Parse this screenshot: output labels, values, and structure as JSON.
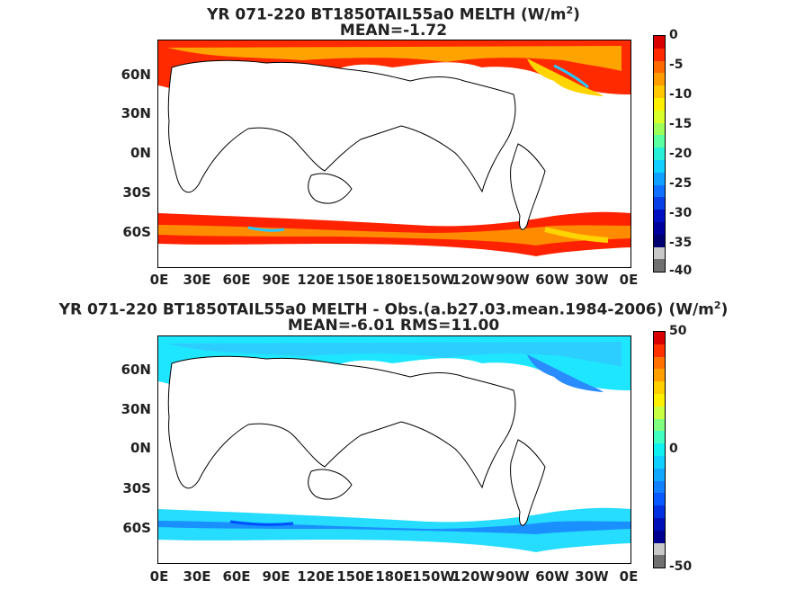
{
  "panels": [
    {
      "title_line1": "YR 071-220 BT1850TAIL55a0  MELTH (W/m",
      "title_sup": "2",
      "title_close": ")",
      "title_line2": "MEAN=-1.72",
      "colorbar_labels": [
        "0",
        "-5",
        "-10",
        "-15",
        "-20",
        "-25",
        "-30",
        "-35",
        "-40"
      ],
      "colors": {
        "arctic": "#ff2a00",
        "arctic_inner": "#ffb000",
        "shelf": "#ffd400",
        "ring": "#ff2200",
        "ring_inner": "#ff8c00",
        "accent": "#28c8ff"
      }
    },
    {
      "title_line1": "YR 071-220 BT1850TAIL55a0 MELTH - Obs.(a.b27.03.mean.1984-2006) (W/m",
      "title_sup": "2",
      "title_close": ")",
      "title_line2": "MEAN=-6.01 RMS=11.00",
      "colorbar_labels": [
        "50",
        "0",
        "-50"
      ],
      "colors": {
        "arctic": "#1ee6ff",
        "arctic_inner": "#30c8ff",
        "shelf": "#2a8cff",
        "ring": "#26dcff",
        "ring_inner": "#1a90ff",
        "accent": "#0050ff"
      }
    }
  ],
  "lat_labels": [
    "60N",
    "30N",
    "0N",
    "30S",
    "60S"
  ],
  "lon_labels": [
    "0E",
    "30E",
    "60E",
    "90E",
    "120E",
    "150E",
    "180E",
    "150W",
    "120W",
    "90W",
    "60W",
    "30W",
    "0E"
  ],
  "colorbar1_colors": [
    "#d80000",
    "#ff2a00",
    "#ff6a00",
    "#ff9c00",
    "#ffc800",
    "#fff000",
    "#d8ff2a",
    "#9cff5a",
    "#5affa0",
    "#28f0d8",
    "#10d0ff",
    "#10a0ff",
    "#1070ff",
    "#0840e8",
    "#0010c0",
    "#00009c",
    "#000070",
    "#c8c8c8",
    "#707070"
  ],
  "colorbar2_colors": [
    "#d80000",
    "#ff3000",
    "#ff7000",
    "#ffa000",
    "#ffd000",
    "#fff000",
    "#c8ff40",
    "#80ff80",
    "#40ffc0",
    "#10f0f0",
    "#10d0ff",
    "#10a8ff",
    "#1080ff",
    "#0858ff",
    "#0030e0",
    "#0010b8",
    "#000090",
    "#c8c8c8",
    "#707070"
  ]
}
